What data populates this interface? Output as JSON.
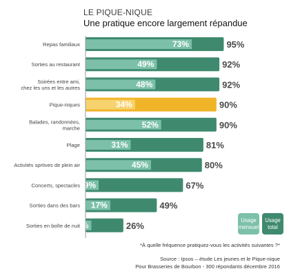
{
  "chart_data": {
    "type": "bar",
    "orientation": "horizontal",
    "kicker": "LE PIQUE-NIQUE",
    "title": "Une pratique encore largement répandue",
    "categories": [
      [
        "Repas familiaux"
      ],
      [
        "Sorties au restaurant"
      ],
      [
        "Soirées entre ami,",
        "chez les uns et les autres"
      ],
      [
        "Pique-niques"
      ],
      [
        "Balades, randonnées,",
        "marche"
      ],
      [
        "Plage"
      ],
      [
        "Activités sprtives de plein air"
      ],
      [
        "Concerts, spectacles"
      ],
      [
        "Sorties dans des bars"
      ],
      [
        "Sorties en boîte de nuit"
      ]
    ],
    "series": [
      {
        "name": "Usage total",
        "values": [
          95,
          92,
          92,
          90,
          90,
          81,
          80,
          67,
          49,
          26
        ],
        "labels": [
          "95%",
          "92%",
          "92%",
          "90%",
          "90%",
          "81%",
          "80%",
          "67%",
          "49%",
          "26%"
        ]
      },
      {
        "name": "Usage mensuel",
        "values": [
          73,
          49,
          48,
          34,
          52,
          31,
          45,
          9,
          17,
          4
        ],
        "labels": [
          "73%",
          "49%",
          "48%",
          "34%",
          "52%",
          "31%",
          "45%",
          "9%",
          "17%",
          "4%"
        ]
      }
    ],
    "highlight_index": 3,
    "xlim": [
      0,
      100
    ],
    "legend": {
      "position": "bottom-right",
      "items": [
        {
          "lines": [
            "Usage",
            "mensuel"
          ],
          "color": "#7cc0a9"
        },
        {
          "lines": [
            "Usage",
            "total"
          ],
          "color": "#3f8a6e"
        }
      ]
    },
    "colors": {
      "total": "#3f8a6e",
      "monthly": "#7cc0a9",
      "highlight_total": "#f0b429",
      "highlight_monthly": "#f7d36e",
      "axis": "#999999"
    },
    "notes": [
      "*À quelle fréquence pratiquez-vous les activités suivantes ?*",
      "Source : Ipsos – étude Les jeunes et le Pique-nique",
      "Pour Brasseries de Bourbon - 300 répondants décembre 2016"
    ]
  }
}
